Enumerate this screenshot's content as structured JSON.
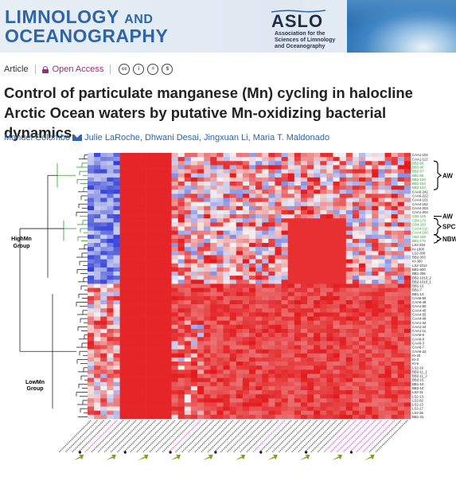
{
  "journal": {
    "name_line1": "LIMNOLOGY",
    "name_line1_suffix": "AND",
    "name_line2": "OCEANOGRAPHY",
    "society_logo": "ASLO",
    "society_sub": "Association for the Sciences of Limnology and Oceanography"
  },
  "article_meta": {
    "type": "Article",
    "access": "Open Access",
    "license_icons": [
      "cc-icon",
      "by-icon",
      "nd-icon",
      "nc-icon"
    ],
    "license_glyphs": [
      "cc",
      "i",
      "=",
      "$"
    ]
  },
  "title": "Control of particulate manganese (Mn) cycling in halocline Arctic Ocean waters by putative Mn-oxidizing bacterial dynamics",
  "authors": {
    "first": "Manuel Colombo",
    "rest": "Julie LaRoche, Dhwani Desai, Jingxuan Li, Maria T. Maldonado"
  },
  "figure": {
    "group_labels": {
      "high": [
        "HighMn",
        "Group"
      ],
      "low": [
        "LowMn",
        "Group"
      ]
    },
    "bracket_labels": [
      "AW",
      "AW",
      "SPC",
      "NBW"
    ],
    "row_labels": [
      "CAA1-102",
      "CAA1-112",
      "BB2-99",
      "BB2-90",
      "BB2-97",
      "BB1-95",
      "BB2-120",
      "BB1-153",
      "BB2-123",
      "CAA6-242",
      "CAA6-222",
      "CAA4-101",
      "CAA4-152",
      "CAA4-203",
      "CAA1-204",
      "CB2-125",
      "CB4-173",
      "CB4-160",
      "CAA4-110",
      "CAA4-100",
      "CB4-180",
      "BB1-175",
      "LS2-334",
      "KI-1000",
      "LS2-300",
      "BB2-303",
      "KI-300",
      "LS2-1012",
      "BB1-500",
      "BB1-305",
      "BB2-1010_2",
      "BB2-1010_1",
      "BB1-12",
      "BB1-7",
      "BB1-14",
      "CAA6-50",
      "CAA6-48",
      "CAA1-50",
      "CAA4-45",
      "CAA4-55",
      "CAA4-48",
      "CAA1-32",
      "CAA1-44",
      "CAA1-11",
      "CAA6-6",
      "CAA6-8",
      "CAA6-3",
      "CAA6-7",
      "CAA6-22",
      "KI-20",
      "KI-3",
      "KI-5",
      "LS2-19",
      "BB2-11_1",
      "BB2-11_2",
      "BB2-15",
      "BB1-10",
      "BB2-10",
      "LS2-31",
      "LS2-13",
      "LS2-82",
      "LS2-13",
      "LS2-17",
      "LS2-35",
      "BB1-31"
    ],
    "row_label_colors": [
      "#222",
      "#222",
      "#2e9a2e",
      "#2e9a2e",
      "#2e9a2e",
      "#2e9a2e",
      "#2e9a2e",
      "#2e9a2e",
      "#2e9a2e",
      "#222",
      "#222",
      "#222",
      "#222",
      "#222",
      "#222",
      "#2e9a2e",
      "#2e9a2e",
      "#2e9a2e",
      "#2e9a2e",
      "#2e9a2e",
      "#2e9a2e",
      "#2e9a2e",
      "#222",
      "#222",
      "#222",
      "#222",
      "#222",
      "#222",
      "#222",
      "#222",
      "#222",
      "#222",
      "#222",
      "#222",
      "#222",
      "#222",
      "#222",
      "#222",
      "#222",
      "#222",
      "#222",
      "#222",
      "#222",
      "#222",
      "#222",
      "#222",
      "#222",
      "#222",
      "#222",
      "#222",
      "#222",
      "#222",
      "#222",
      "#222",
      "#222",
      "#222",
      "#222",
      "#222",
      "#222",
      "#222",
      "#222",
      "#222",
      "#222",
      "#222",
      "#222"
    ],
    "colors": {
      "high": "#e41a1c",
      "mid": "#f4f4f4",
      "low": "#2f3fd8",
      "accent_purple": "#e24ae0",
      "arrow_green": "#8a9a1a",
      "dendro_green": "#2e9a2e",
      "dendro_black": "#222"
    }
  }
}
